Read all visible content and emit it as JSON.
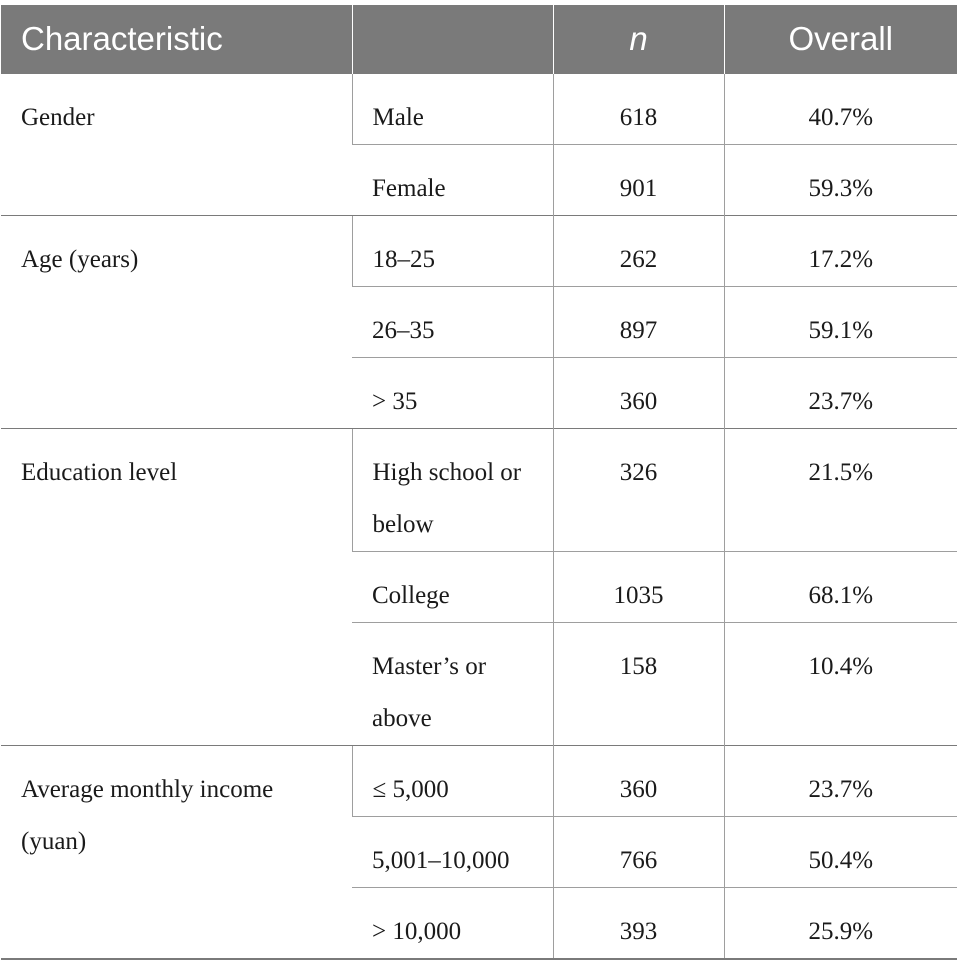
{
  "table": {
    "headers": [
      "Characteristic",
      "",
      "n",
      "Overall"
    ],
    "groups": [
      {
        "characteristic": "Gender",
        "rows": [
          {
            "category": "Male",
            "n": "618",
            "overall": "40.7%"
          },
          {
            "category": "Female",
            "n": "901",
            "overall": "59.3%"
          }
        ]
      },
      {
        "characteristic": "Age (years)",
        "rows": [
          {
            "category": "18–25",
            "n": "262",
            "overall": "17.2%"
          },
          {
            "category": "26–35",
            "n": "897",
            "overall": "59.1%"
          },
          {
            "category": "> 35",
            "n": "360",
            "overall": "23.7%"
          }
        ]
      },
      {
        "characteristic": "Education level",
        "rows": [
          {
            "category": "High school or below",
            "n": "326",
            "overall": "21.5%"
          },
          {
            "category": "College",
            "n": "1035",
            "overall": "68.1%"
          },
          {
            "category": "Master’s or above",
            "n": "158",
            "overall": "10.4%"
          }
        ]
      },
      {
        "characteristic": "Average monthly income (yuan)",
        "rows": [
          {
            "category": "≤ 5,000",
            "n": "360",
            "overall": "23.7%"
          },
          {
            "category": "5,001–10,000",
            "n": "766",
            "overall": "50.4%"
          },
          {
            "category": "> 10,000",
            "n": "393",
            "overall": "25.9%"
          }
        ]
      }
    ]
  }
}
